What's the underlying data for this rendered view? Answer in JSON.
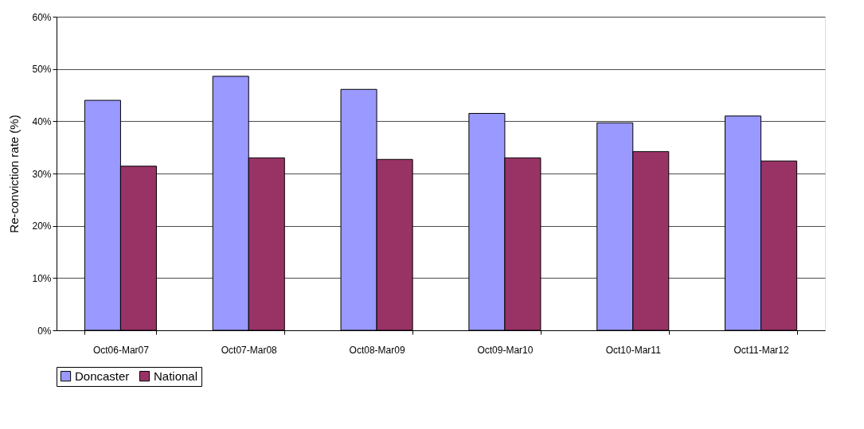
{
  "chart_data": {
    "type": "bar",
    "ylabel": "Re-conviction rate (%)",
    "categories": [
      "Oct06-Mar07",
      "Oct07-Mar08",
      "Oct08-Mar09",
      "Oct09-Mar10",
      "Oct10-Mar11",
      "Oct11-Mar12"
    ],
    "series": [
      {
        "name": "Doncaster",
        "color": "#9999ff",
        "values": [
          44.0,
          48.6,
          46.1,
          41.5,
          39.7,
          41.0
        ]
      },
      {
        "name": "National",
        "color": "#993366",
        "values": [
          31.4,
          33.0,
          32.7,
          33.0,
          34.2,
          32.4
        ]
      }
    ],
    "ylim": [
      0,
      60
    ],
    "yticks": [
      {
        "value": 0,
        "label": "0%"
      },
      {
        "value": 10,
        "label": "10%"
      },
      {
        "value": 20,
        "label": "20%"
      },
      {
        "value": 30,
        "label": "30%"
      },
      {
        "value": 40,
        "label": "40%"
      },
      {
        "value": 50,
        "label": "50%"
      },
      {
        "value": 60,
        "label": "60%"
      }
    ],
    "grid": "y",
    "legend": "bottom"
  }
}
